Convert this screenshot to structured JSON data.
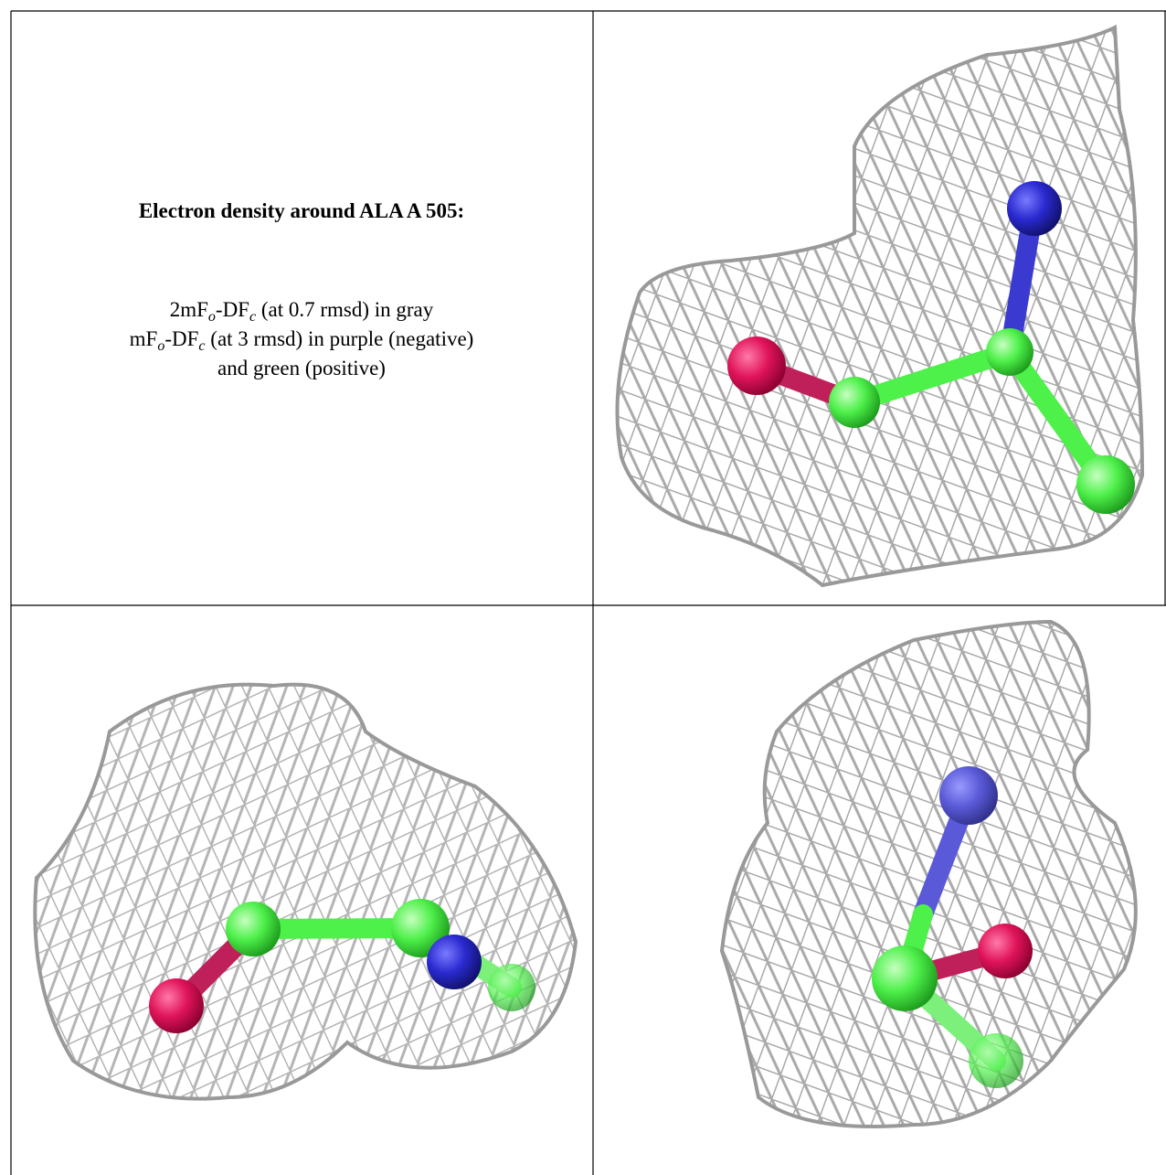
{
  "title": "Electron density around ALA A 505:",
  "legend_lines": [
    [
      "2mF",
      "o",
      "-DF",
      "c",
      " (at 0.7 rmsd) in gray"
    ],
    [
      "mF",
      "o",
      "-DF",
      "c",
      " (at 3 rmsd) in purple (negative)"
    ],
    [
      "and green (positive)"
    ]
  ]
}
